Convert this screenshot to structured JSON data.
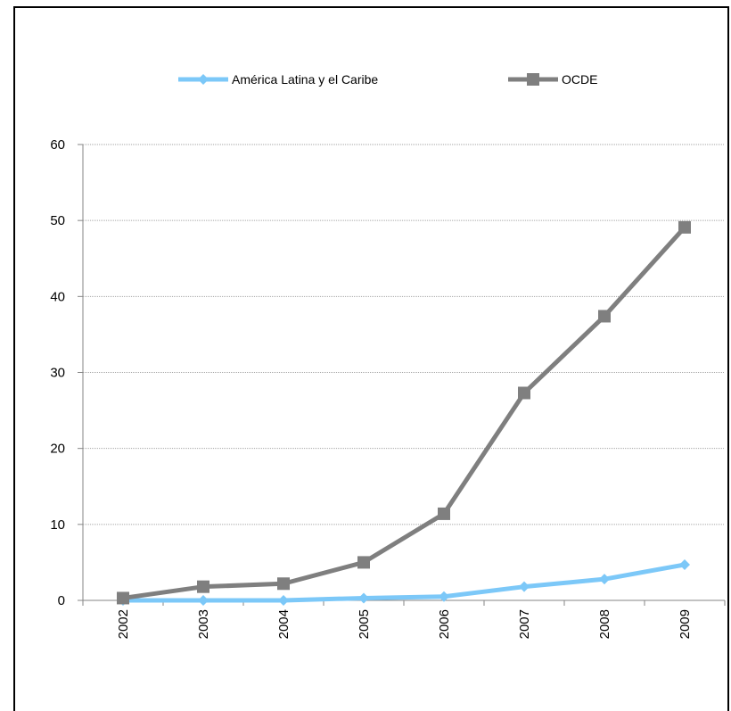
{
  "chart_data": {
    "type": "line",
    "categories": [
      "2002",
      "2003",
      "2004",
      "2005",
      "2006",
      "2007",
      "2008",
      "2009"
    ],
    "series": [
      {
        "name": "América Latina y el Caribe",
        "values": [
          0.0,
          0.0,
          0.0,
          0.3,
          0.5,
          1.8,
          2.8,
          4.7
        ],
        "color": "#7cc8f8",
        "marker": "diamond"
      },
      {
        "name": "OCDE",
        "values": [
          0.3,
          1.8,
          2.2,
          5.0,
          11.4,
          27.3,
          37.4,
          49.1
        ],
        "color": "#7f7f7f",
        "marker": "square"
      }
    ],
    "yticks": [
      "0",
      "10",
      "20",
      "30",
      "40",
      "50",
      "60"
    ],
    "ylim": [
      0,
      60
    ],
    "grid": true,
    "legend_position": "top",
    "title": "",
    "xlabel": "",
    "ylabel": ""
  }
}
